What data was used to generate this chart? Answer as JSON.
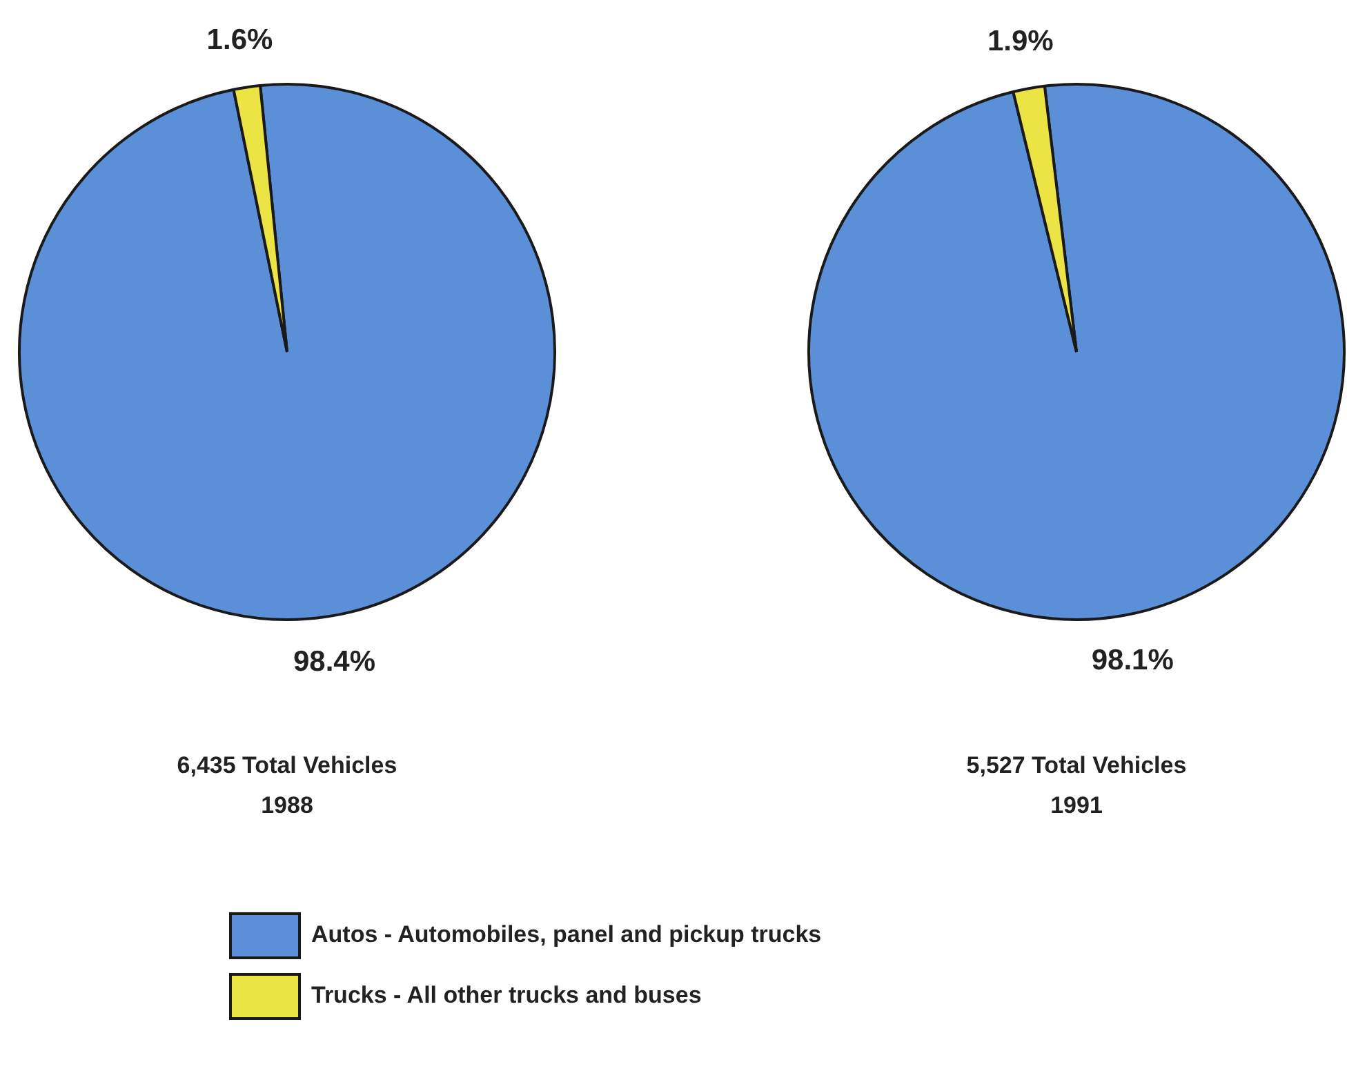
{
  "chart_data": [
    {
      "type": "pie",
      "categories": [
        "Autos - Automobiles, panel and pickup trucks",
        "Trucks - All other trucks and buses"
      ],
      "values": [
        98.4,
        1.6
      ],
      "value_labels": [
        "98.4%",
        "1.6%"
      ],
      "colors": [
        "#5b8fd8",
        "#ece345"
      ],
      "legend": "bottom",
      "annotations": [
        "6,435 Total Vehicles",
        "1988"
      ]
    },
    {
      "type": "pie",
      "categories": [
        null,
        null
      ],
      "values": [
        98.1,
        1.9
      ],
      "value_labels": [
        "98.1%",
        "1.9%"
      ],
      "colors": [
        "#5b8fd8",
        "#ece345"
      ],
      "annotations": [
        "5,527 Total Vehicles",
        "1991"
      ]
    }
  ]
}
